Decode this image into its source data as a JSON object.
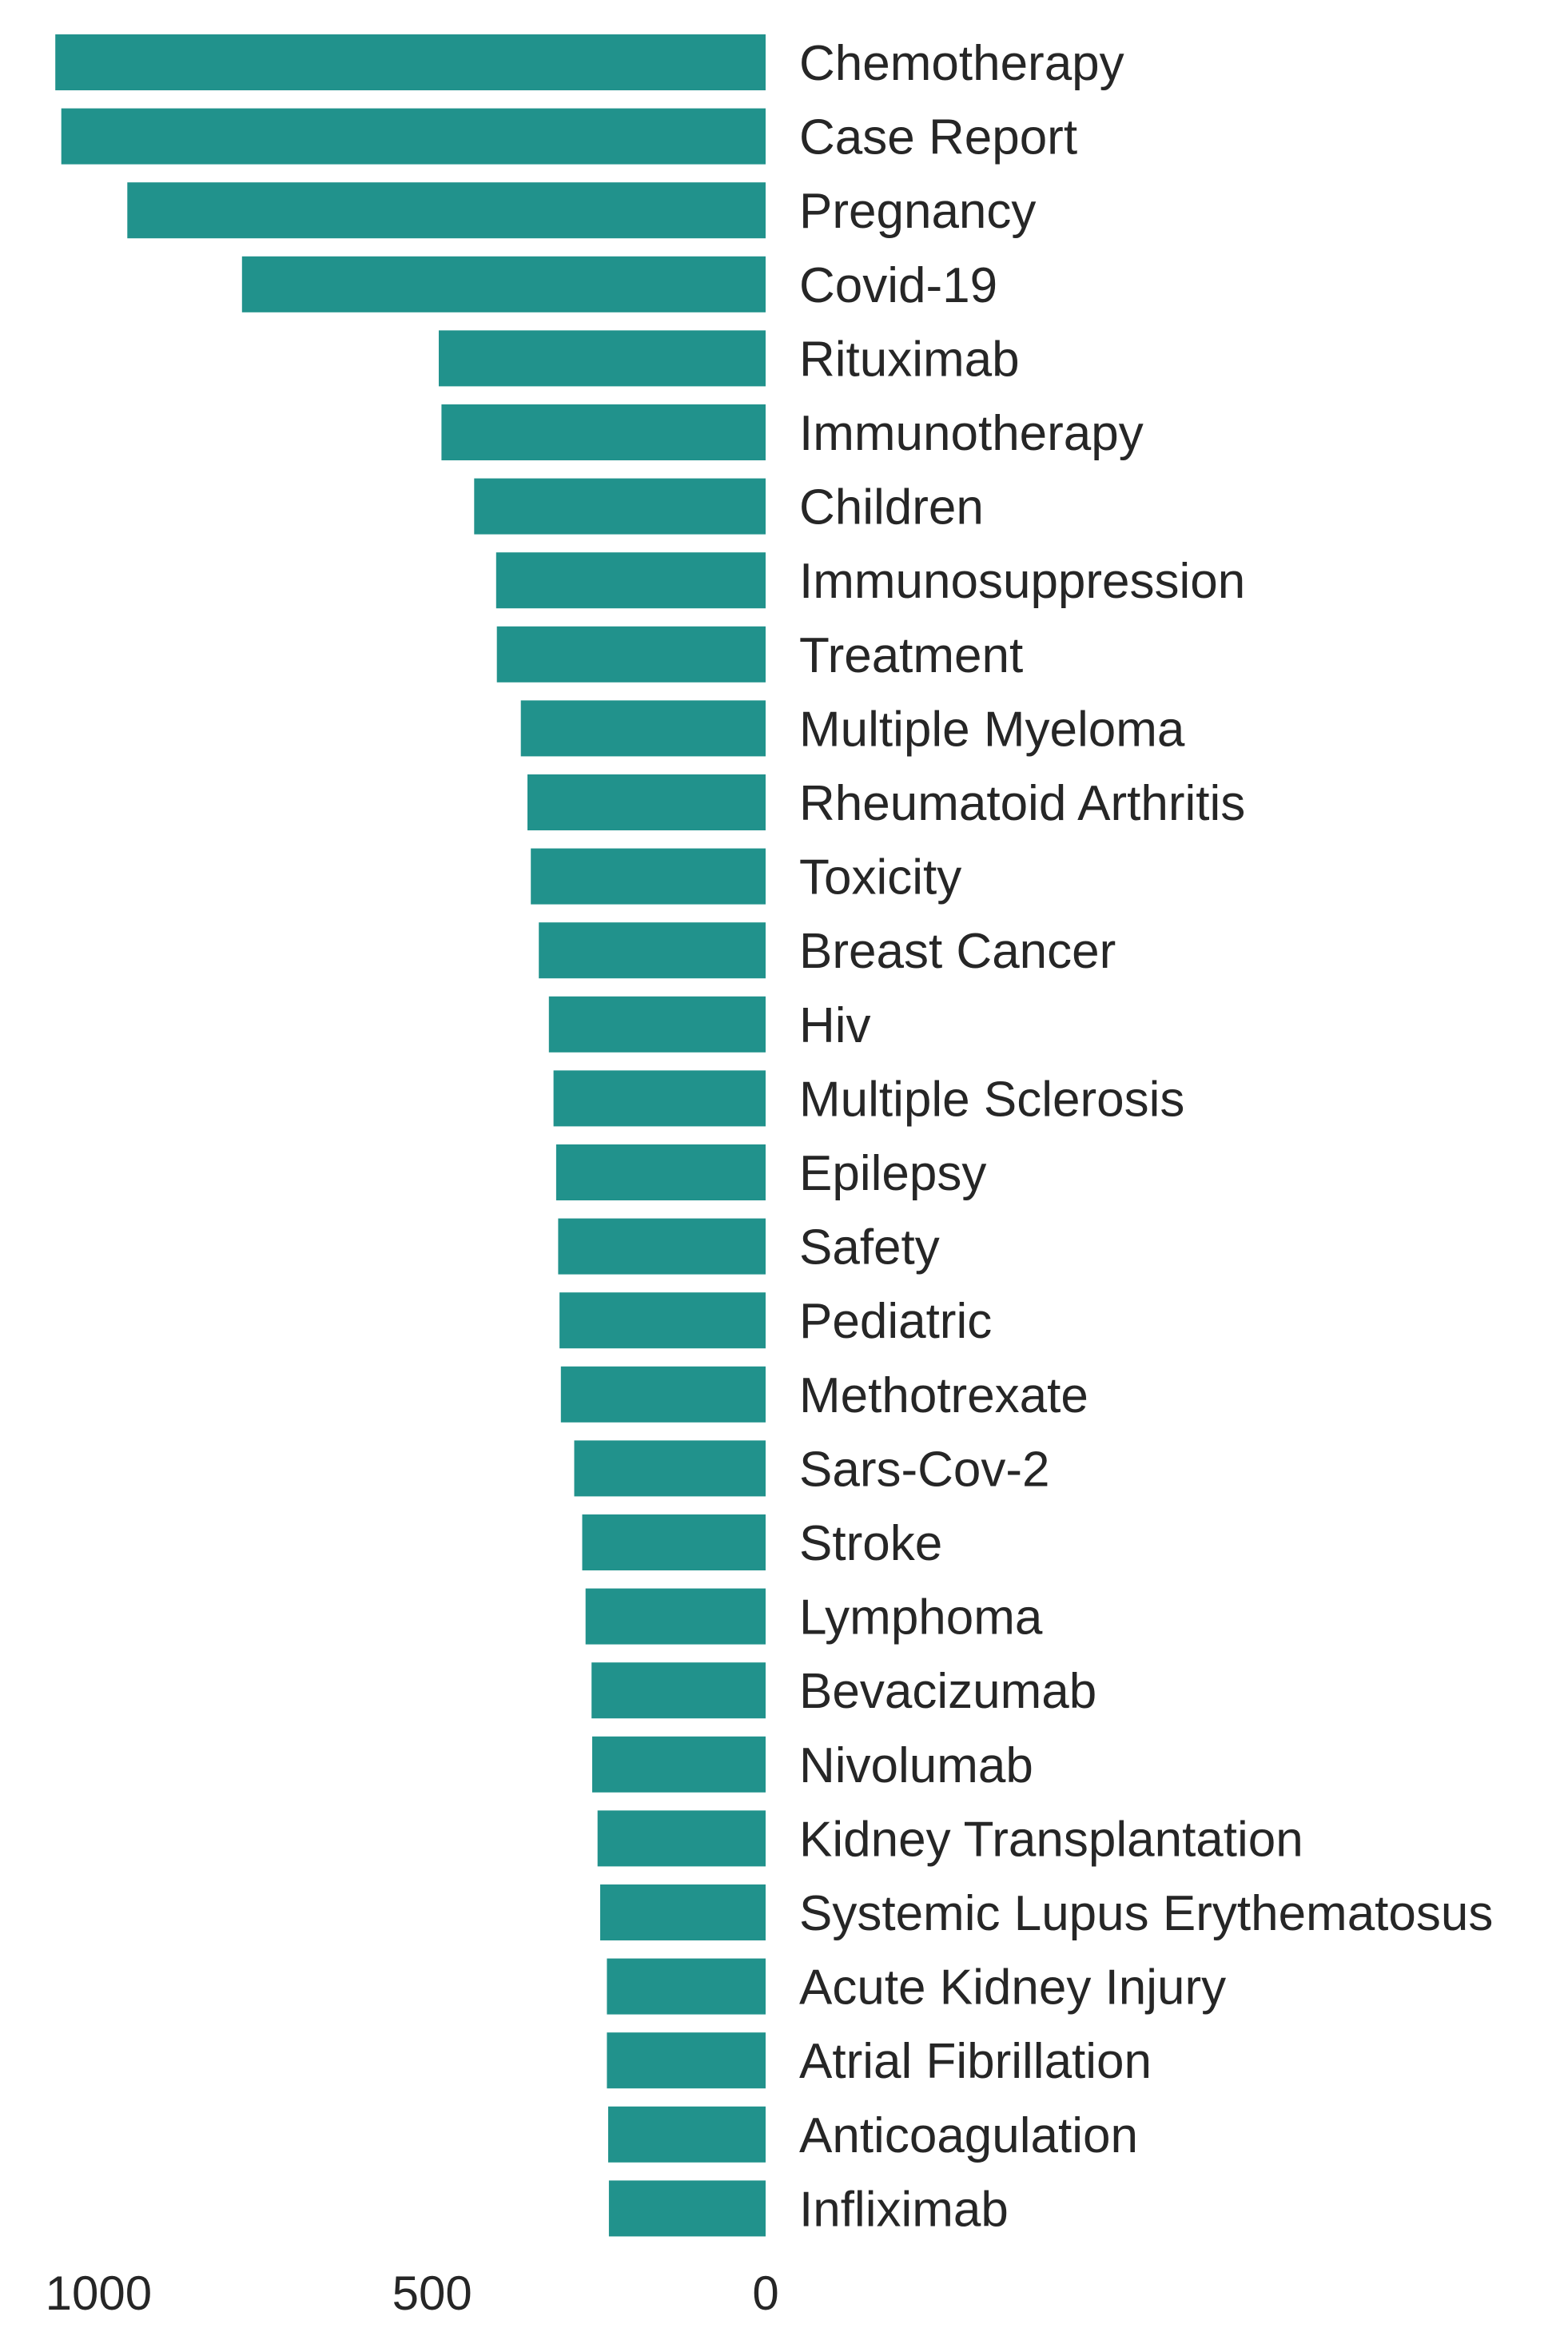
{
  "chart_data": {
    "type": "bar",
    "orientation": "horizontal",
    "x_direction": "reversed",
    "bar_color": "#21928c",
    "background": "#ffffff",
    "grid": false,
    "xlim": [
      0,
      1100
    ],
    "xticks": [
      1000,
      500,
      0
    ],
    "tick_labels": [
      "1000",
      "500",
      "0"
    ],
    "categories": [
      "Chemotherapy",
      "Case Report",
      "Pregnancy",
      "Covid-19",
      "Rituximab",
      "Immunotherapy",
      "Children",
      "Immunosuppression",
      "Treatment",
      "Multiple Myeloma",
      "Rheumatoid Arthritis",
      "Toxicity",
      "Breast Cancer",
      "Hiv",
      "Multiple Sclerosis",
      "Epilepsy",
      "Safety",
      "Pediatric",
      "Methotrexate",
      "Sars-Cov-2",
      "Stroke",
      "Lymphoma",
      "Bevacizumab",
      "Nivolumab",
      "Kidney Transplantation",
      "Systemic Lupus Erythematosus",
      "Acute Kidney Injury",
      "Atrial Fibrillation",
      "Anticoagulation",
      "Infliximab"
    ],
    "values": [
      1065,
      1056,
      957,
      785,
      490,
      486,
      437,
      404,
      403,
      367,
      357,
      352,
      340,
      325,
      318,
      314,
      311,
      309,
      307,
      287,
      275,
      270,
      261,
      260,
      252,
      248,
      238,
      238,
      236,
      235
    ]
  }
}
